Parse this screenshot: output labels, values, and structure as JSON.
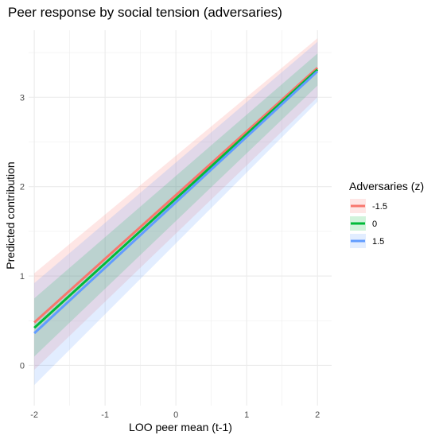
{
  "chart_data": {
    "type": "line",
    "title": "Peer response by social tension (adversaries)",
    "xlabel": "LOO peer mean (t-1)",
    "ylabel": "Predicted contribution",
    "xlim": [
      -2.08,
      2.2
    ],
    "ylim": [
      -0.45,
      3.75
    ],
    "x_ticks": [
      -2,
      -1,
      0,
      1,
      2
    ],
    "x_tick_labels": [
      "-2",
      "-1",
      "0",
      "1",
      "2"
    ],
    "y_ticks": [
      0,
      1,
      2,
      3
    ],
    "y_tick_labels": [
      "0",
      "1",
      "2",
      "3"
    ],
    "grid": true,
    "legend_position": "right",
    "legend_title": "Adversaries (z)",
    "x": [
      -2,
      2
    ],
    "series": [
      {
        "name": "-1.5",
        "color": "#F8766D",
        "values": [
          0.48,
          3.33
        ],
        "lower": [
          -0.05,
          3.0
        ],
        "upper": [
          1.03,
          3.66
        ]
      },
      {
        "name": "0",
        "color": "#00BA38",
        "values": [
          0.42,
          3.31
        ],
        "lower": [
          0.1,
          3.13
        ],
        "upper": [
          0.75,
          3.49
        ]
      },
      {
        "name": "1.5",
        "color": "#619CFF",
        "values": [
          0.36,
          3.29
        ],
        "lower": [
          -0.22,
          2.95
        ],
        "upper": [
          0.92,
          3.62
        ]
      }
    ]
  }
}
